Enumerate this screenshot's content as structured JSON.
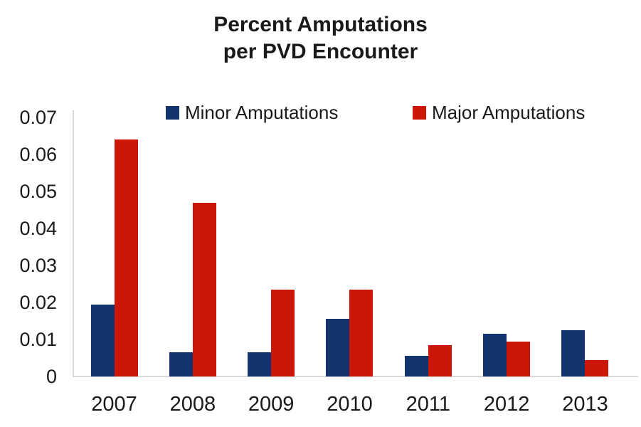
{
  "title": {
    "line1": "Percent Amputations",
    "line2": "per PVD Encounter"
  },
  "chart_data": {
    "type": "bar",
    "title": "Percent Amputations per PVD Encounter",
    "categories": [
      "2007",
      "2008",
      "2009",
      "2010",
      "2011",
      "2012",
      "2013"
    ],
    "series": [
      {
        "name": "Minor Amputations",
        "color": "#12336E",
        "values": [
          0.0195,
          0.0065,
          0.0065,
          0.0155,
          0.0055,
          0.0115,
          0.0125
        ]
      },
      {
        "name": "Major Amputations",
        "color": "#CB1608",
        "values": [
          0.064,
          0.047,
          0.0235,
          0.0235,
          0.0085,
          0.0095,
          0.0045
        ]
      }
    ],
    "xlabel": "",
    "ylabel": "",
    "ylim": [
      0,
      0.07
    ],
    "ytick_step": 0.01,
    "ytick_labels": [
      "0",
      "0.01",
      "0.02",
      "0.03",
      "0.04",
      "0.05",
      "0.06",
      "0.07"
    ],
    "grid": false,
    "legend_position": "top-inside",
    "axis_color": "#D9D9D9",
    "text_color": "#1A1A1A",
    "background": "#FFFFFF"
  }
}
